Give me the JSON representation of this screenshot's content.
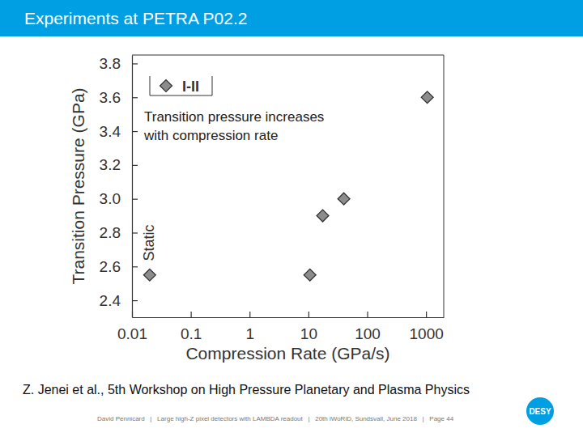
{
  "page": {
    "title": "Experiments at PETRA P02.2",
    "caption": "Z. Jenei et al., 5th Workshop on High Pressure Planetary and Plasma Physics",
    "footer": "David Pennicard   |   Large high-Z pixel detectors with LAMBDA readout   |   20th iWoRiD, Sundsvall, June 2018   |   Page 44",
    "logo": "DESY"
  },
  "chart_data": {
    "type": "scatter",
    "x_label": "Compression Rate (GPa/s)",
    "y_label": "Transition Pressure (GPa)",
    "annotations": [
      "Transition pressure increases\nwith compression rate",
      "Static"
    ],
    "x": [
      0.02,
      10.6,
      17.5,
      40,
      1050
    ],
    "series": [
      {
        "name": "I-II",
        "color": "#8c8c8c",
        "marker": "diamond",
        "values": [
          2.55,
          2.55,
          2.9,
          3.0,
          3.6
        ]
      }
    ],
    "xlim": [
      0.01,
      2000
    ],
    "ylim": [
      2.3,
      3.85
    ],
    "xticks": [
      0.01,
      0.1,
      1,
      10,
      100,
      1000
    ],
    "yticks": [
      2.4,
      2.6,
      2.8,
      {
        "value": 3,
        "label": "3.0"
      },
      3.2,
      3.4,
      3.6,
      3.8
    ],
    "log": "x",
    "grid": false,
    "legend": "top-left"
  }
}
